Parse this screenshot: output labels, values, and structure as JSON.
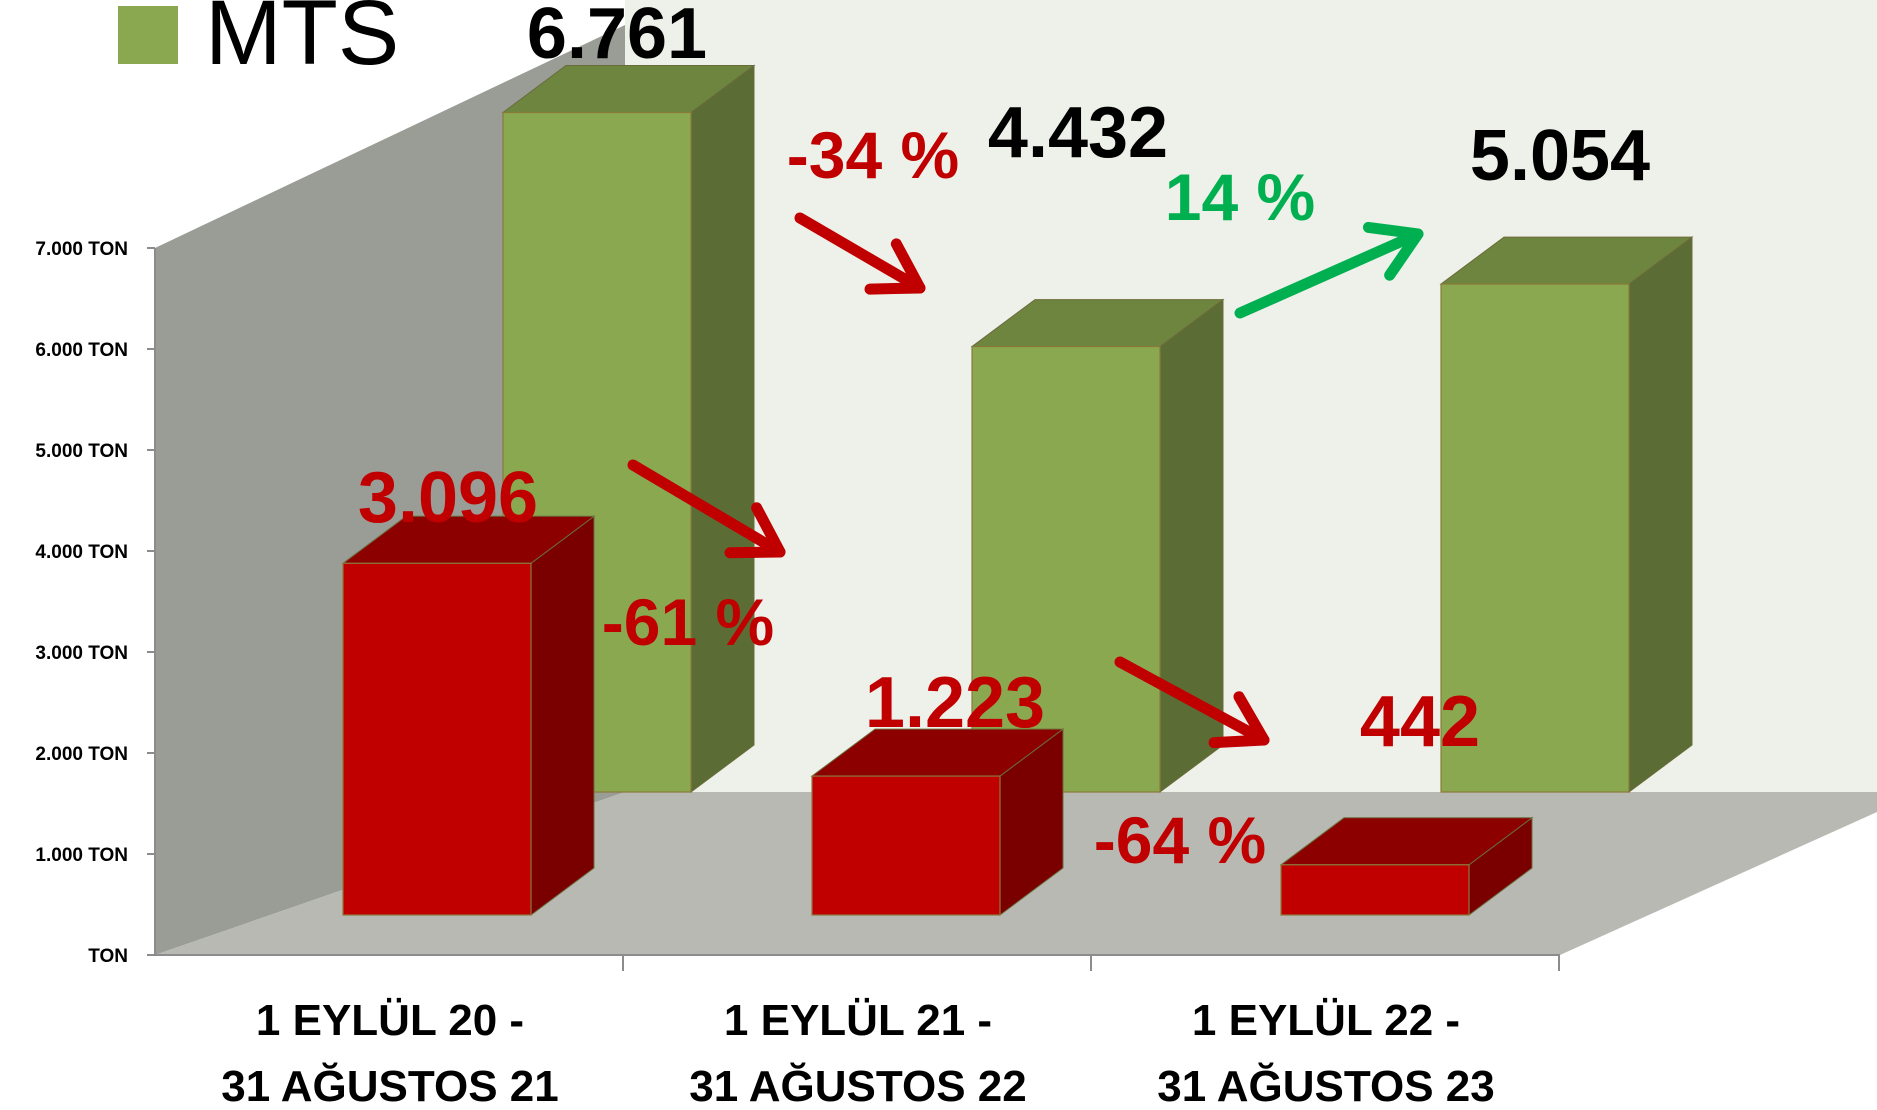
{
  "chart_data": {
    "type": "bar",
    "categories": [
      [
        "1 EYLÜL 20 -",
        "31 AĞUSTOS 21"
      ],
      [
        "1 EYLÜL 21 -",
        "31 AĞUSTOS 22"
      ],
      [
        "1 EYLÜL 22 -",
        "31 AĞUSTOS 23"
      ]
    ],
    "series": [
      {
        "name": "MTS",
        "values": [
          6761,
          4432,
          5054
        ],
        "labels": [
          "6.761",
          "4.432",
          "5.054"
        ]
      },
      {
        "values": [
          3096,
          1223,
          442
        ],
        "labels": [
          "3.096",
          "1.223",
          "442"
        ]
      }
    ],
    "yticks": [
      "TON",
      "1.000 TON",
      "2.000 TON",
      "3.000 TON",
      "4.000 TON",
      "5.000 TON",
      "6.000 TON",
      "7.000 TON"
    ],
    "ylim": [
      0,
      7000
    ],
    "annotations": [
      {
        "series": 0,
        "from": 0,
        "to": 1,
        "text": "-34 %"
      },
      {
        "series": 0,
        "from": 1,
        "to": 2,
        "text": "14 %"
      },
      {
        "series": 1,
        "from": 0,
        "to": 1,
        "text": "-61 %"
      },
      {
        "series": 1,
        "from": 1,
        "to": 2,
        "text": "-64 %"
      }
    ],
    "legend": "top-left",
    "colors": {
      "mts_front": "#8aa84f",
      "mts_side": "#5b6d34",
      "mts_top": "#6e8540",
      "red_front": "#c00000",
      "red_side": "#7a0000",
      "red_top": "#8c0000",
      "back_wall": "#eef1ea",
      "side_wall": "#9a9c96",
      "floor": "#b8b9b3",
      "increase": "#00b050",
      "decrease": "#c00000"
    }
  }
}
